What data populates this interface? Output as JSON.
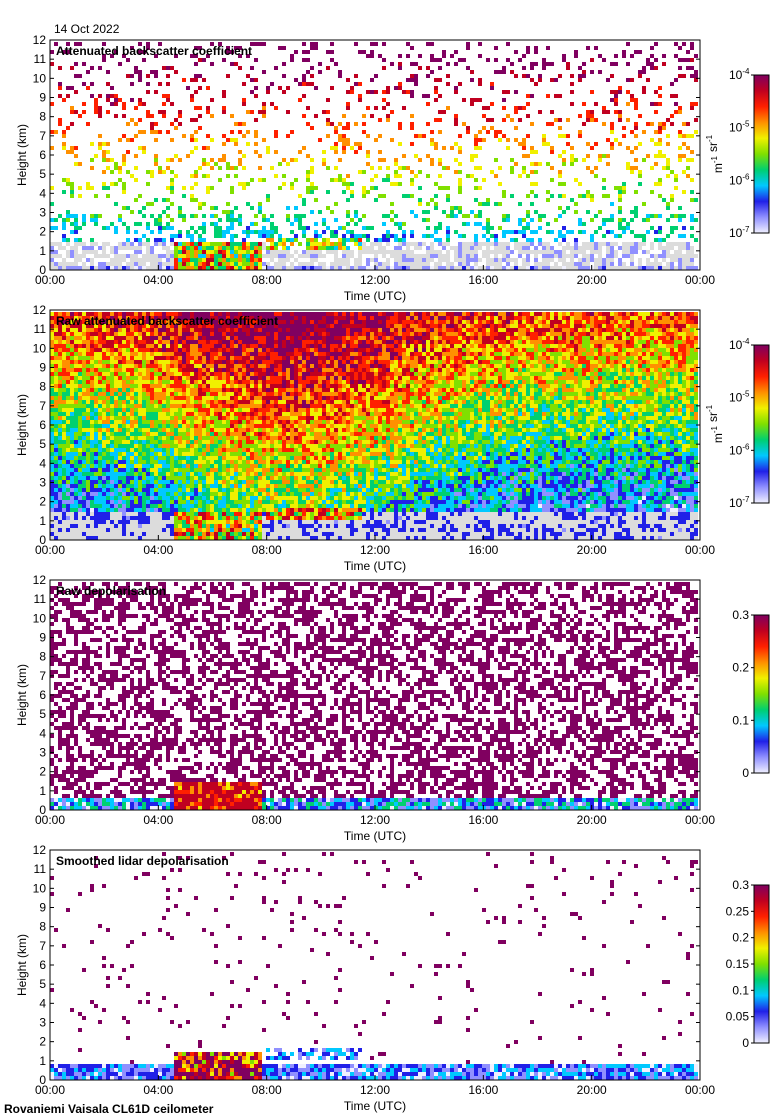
{
  "header": {
    "date": "14 Oct 2022"
  },
  "footer": {
    "instrument": "Rovaniemi Vaisala CL61D ceilometer"
  },
  "x_axis": {
    "label": "Time (UTC)",
    "ticks": [
      "00:00",
      "04:00",
      "08:00",
      "12:00",
      "16:00",
      "20:00",
      "00:00"
    ],
    "range_hours": [
      0,
      24
    ]
  },
  "y_axis": {
    "label": "Height (km)",
    "ticks": [
      "0",
      "1",
      "2",
      "3",
      "4",
      "5",
      "6",
      "7",
      "8",
      "9",
      "10",
      "11",
      "12"
    ],
    "range_km": [
      0,
      12
    ]
  },
  "colors": {
    "colormap": [
      "#f0f0ff",
      "#9090ff",
      "#2020e8",
      "#00c8ff",
      "#00d070",
      "#80e000",
      "#f0f000",
      "#ff9000",
      "#ff2000",
      "#c00020",
      "#800060"
    ],
    "missing": "#dcdcdc",
    "background": "#ffffff"
  },
  "chart_data": [
    {
      "type": "heatmap",
      "title": "Attenuated backscatter coefficient",
      "xlabel": "Time (UTC)",
      "ylabel": "Height (km)",
      "xlim": [
        0,
        24
      ],
      "ylim": [
        0,
        12
      ],
      "colorbar": {
        "scale": "log",
        "min": 1e-07,
        "max": 0.0001,
        "ticks": [
          "10-7",
          "10-6",
          "10-5",
          "10-4"
        ],
        "label": "m-1 sr-1"
      },
      "features": {
        "cloud_layer": {
          "start_h": 4.6,
          "end_h": 7.9,
          "base_km": 0.1,
          "top_km": 1.5
        },
        "elevated_layer": {
          "start_h": 8.0,
          "end_h": 11.6,
          "base_km": 1.2,
          "top_km": 1.8
        },
        "surface_layer_km": [
          0,
          0.3
        ]
      }
    },
    {
      "type": "heatmap",
      "title": "Raw attenuated backscatter coefficient",
      "xlabel": "Time (UTC)",
      "ylabel": "Height (km)",
      "xlim": [
        0,
        24
      ],
      "ylim": [
        0,
        12
      ],
      "colorbar": {
        "scale": "log",
        "min": 1e-07,
        "max": 0.0001,
        "ticks": [
          "10-7",
          "10-6",
          "10-5",
          "10-4"
        ],
        "label": "m-1 sr-1"
      }
    },
    {
      "type": "heatmap",
      "title": "Raw depolarisation",
      "xlabel": "Time (UTC)",
      "ylabel": "Height (km)",
      "xlim": [
        0,
        24
      ],
      "ylim": [
        0,
        12
      ],
      "colorbar": {
        "scale": "linear",
        "min": 0,
        "max": 0.3,
        "ticks": [
          "0",
          "0.1",
          "0.2",
          "0.3"
        ],
        "label": ""
      }
    },
    {
      "type": "heatmap",
      "title": "Smoothed lidar depolarisation",
      "xlabel": "Time (UTC)",
      "ylabel": "Height (km)",
      "xlim": [
        0,
        24
      ],
      "ylim": [
        0,
        12
      ],
      "colorbar": {
        "scale": "linear",
        "min": 0,
        "max": 0.3,
        "ticks": [
          "0",
          "0.05",
          "0.1",
          "0.15",
          "0.2",
          "0.25",
          "0.3"
        ],
        "label": ""
      }
    }
  ]
}
